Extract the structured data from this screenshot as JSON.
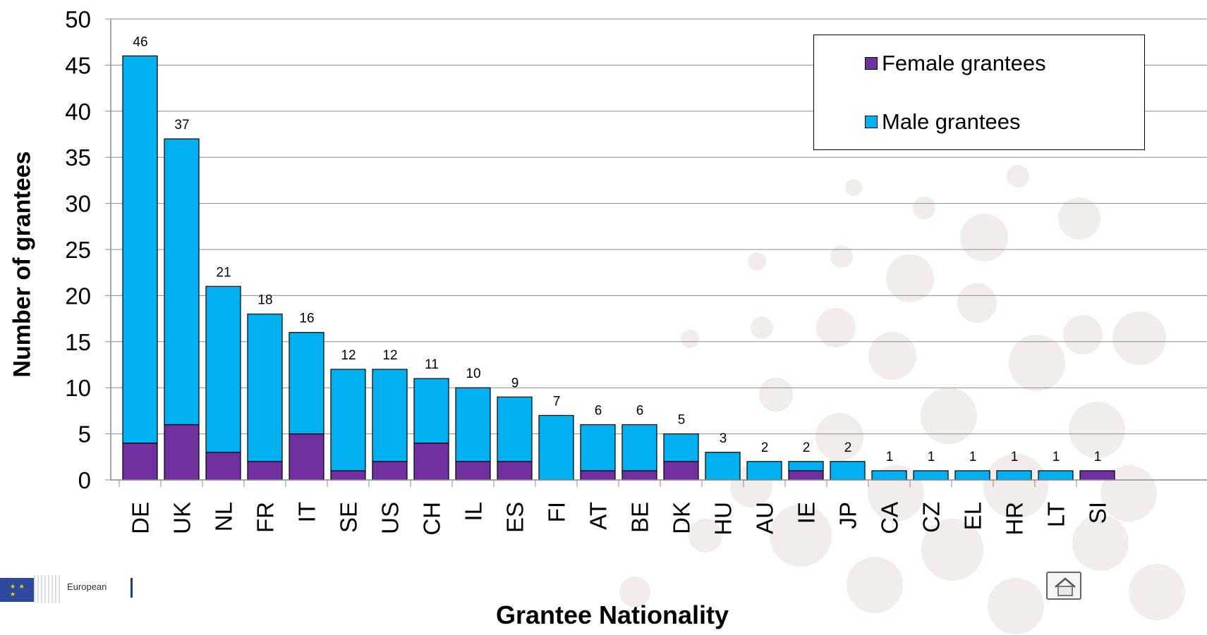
{
  "chart_data": {
    "type": "bar",
    "stacked": true,
    "xlabel": "Grantee Nationality",
    "ylabel": "Number of grantees",
    "ylim": [
      0,
      50
    ],
    "y_ticks": [
      0,
      5,
      10,
      15,
      20,
      25,
      30,
      35,
      40,
      45,
      50
    ],
    "grid": true,
    "legend_position": "top-right",
    "categories": [
      "DE",
      "UK",
      "NL",
      "FR",
      "IT",
      "SE",
      "US",
      "CH",
      "IL",
      "ES",
      "FI",
      "AT",
      "BE",
      "DK",
      "HU",
      "AU",
      "IE",
      "JP",
      "CA",
      "CZ",
      "EL",
      "HR",
      "LT",
      "SI"
    ],
    "totals": [
      46,
      37,
      21,
      18,
      16,
      12,
      12,
      11,
      10,
      9,
      7,
      6,
      6,
      5,
      3,
      2,
      2,
      2,
      1,
      1,
      1,
      1,
      1,
      1
    ],
    "series": [
      {
        "name": "Female grantees",
        "color": "#7030a0",
        "values": [
          4,
          6,
          3,
          2,
          5,
          1,
          2,
          4,
          2,
          2,
          0,
          1,
          1,
          2,
          0,
          0,
          1,
          0,
          0,
          0,
          0,
          0,
          0,
          1
        ]
      },
      {
        "name": "Male grantees",
        "color": "#00b0f0",
        "values": [
          42,
          31,
          18,
          16,
          11,
          11,
          10,
          7,
          8,
          7,
          7,
          5,
          5,
          3,
          3,
          2,
          1,
          2,
          1,
          1,
          1,
          1,
          1,
          0
        ]
      }
    ]
  },
  "logo": {
    "text": "European"
  },
  "icons": {
    "home": "home-icon",
    "logo_flag": "eu-flag-icon"
  }
}
